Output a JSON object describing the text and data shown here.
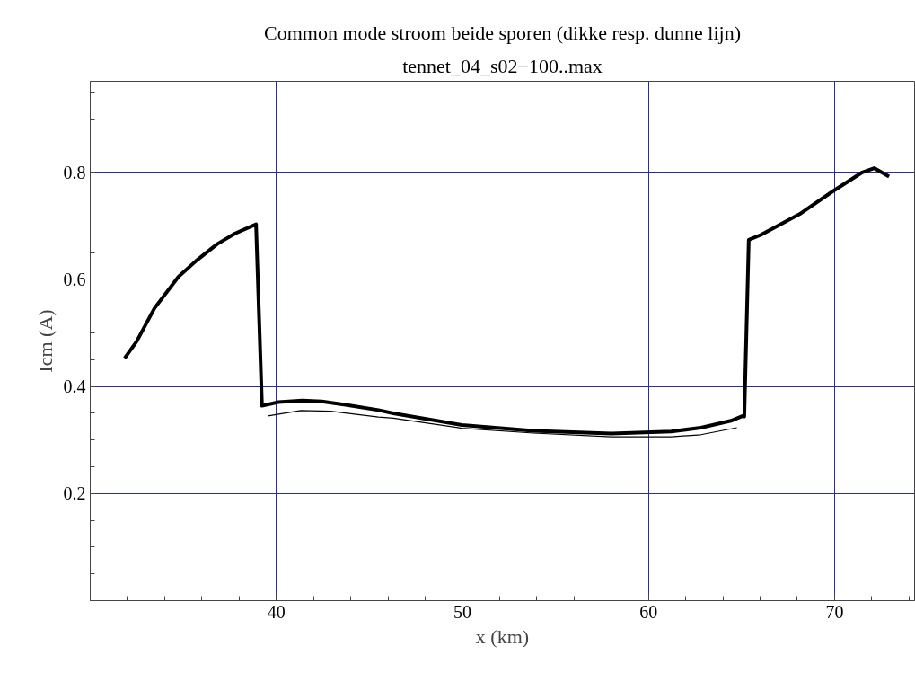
{
  "chart_data": {
    "type": "line",
    "title": "Common mode stroom beide sporen (dikke resp. dunne lijn)",
    "subtitle": "tennet_04_s02−100..max",
    "xlabel": "x (km)",
    "ylabel": "Icm (A)",
    "xlim": [
      30,
      74.3
    ],
    "ylim": [
      0,
      0.97
    ],
    "xticks": [
      {
        "value": 32,
        "label": null
      },
      {
        "value": 34,
        "label": null
      },
      {
        "value": 36,
        "label": null
      },
      {
        "value": 38,
        "label": null
      },
      40,
      {
        "value": 42,
        "label": null
      },
      {
        "value": 44,
        "label": null
      },
      {
        "value": 46,
        "label": null
      },
      {
        "value": 48,
        "label": null
      },
      50,
      {
        "value": 52,
        "label": null
      },
      {
        "value": 54,
        "label": null
      },
      {
        "value": 56,
        "label": null
      },
      {
        "value": 58,
        "label": null
      },
      60,
      {
        "value": 62,
        "label": null
      },
      {
        "value": 64,
        "label": null
      },
      {
        "value": 66,
        "label": null
      },
      {
        "value": 68,
        "label": null
      },
      70,
      {
        "value": 72,
        "label": null
      },
      {
        "value": 74,
        "label": null
      }
    ],
    "yticks": [
      {
        "value": 0.05,
        "label": null
      },
      {
        "value": 0.1,
        "label": null
      },
      {
        "value": 0.15,
        "label": null
      },
      0.2,
      {
        "value": 0.25,
        "label": null
      },
      {
        "value": 0.3,
        "label": null
      },
      {
        "value": 0.35,
        "label": null
      },
      0.4,
      {
        "value": 0.45,
        "label": null
      },
      {
        "value": 0.5,
        "label": null
      },
      {
        "value": 0.55,
        "label": null
      },
      0.6,
      {
        "value": 0.65,
        "label": null
      },
      {
        "value": 0.7,
        "label": null
      },
      {
        "value": 0.75,
        "label": null
      },
      0.8,
      {
        "value": 0.85,
        "label": null
      },
      {
        "value": 0.9,
        "label": null
      },
      {
        "value": 0.95,
        "label": null
      }
    ],
    "grid": true,
    "marker": "none",
    "line_style": "solid",
    "series": [
      {
        "color": "#000000",
        "x": [
          31.85,
          32.49,
          33.45,
          34.74,
          35.7,
          36.82,
          37.79,
          38.91,
          39.23,
          40.11,
          41.4,
          42.44,
          43.72,
          45.49,
          46.29,
          49.98,
          53.83,
          58.01,
          61.22,
          62.82,
          64.43,
          65.07,
          65.15,
          65.39,
          66.03,
          68.12,
          69.88,
          71.49,
          72.13,
          72.93
        ],
        "values": [
          0.453,
          0.484,
          0.546,
          0.605,
          0.635,
          0.666,
          0.686,
          0.703,
          0.364,
          0.371,
          0.374,
          0.372,
          0.366,
          0.356,
          0.35,
          0.328,
          0.317,
          0.312,
          0.316,
          0.323,
          0.336,
          0.345,
          0.344,
          0.674,
          0.683,
          0.722,
          0.764,
          0.8,
          0.808,
          0.792
        ]
      },
      {
        "color": "#000000",
        "x": [
          39.55,
          41.31,
          42.92,
          45.49,
          46.29,
          49.98,
          53.83,
          58.01,
          61.22,
          62.82,
          64.75
        ],
        "values": [
          0.345,
          0.355,
          0.354,
          0.343,
          0.341,
          0.322,
          0.313,
          0.306,
          0.306,
          0.31,
          0.323
        ]
      }
    ]
  }
}
